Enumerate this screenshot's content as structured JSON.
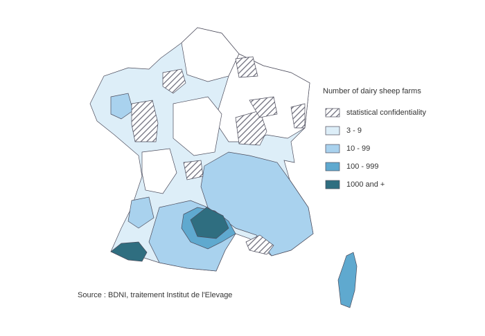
{
  "legend": {
    "title": "Number of dairy sheep farms",
    "items": [
      "statistical confidentiality",
      "3 - 9",
      "10 - 99",
      "100 - 999",
      "1000 and +"
    ]
  },
  "source": "Source : BDNI, traitement Institut de l'Elevage"
}
